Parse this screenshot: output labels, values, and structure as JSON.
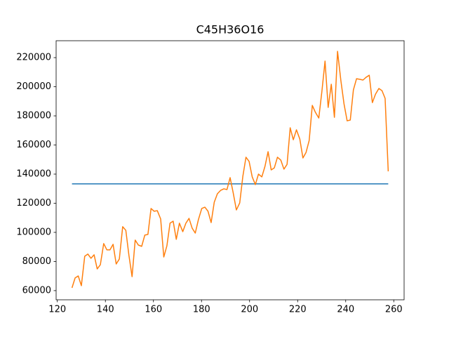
{
  "chart_data": {
    "type": "line",
    "title": "C45H36O16",
    "xlim": [
      119.5,
      264.3
    ],
    "xticks": [
      120,
      140,
      160,
      180,
      200,
      220,
      240,
      260
    ],
    "ylim": [
      53700,
      231600
    ],
    "yticks": [
      60000,
      80000,
      100000,
      120000,
      140000,
      160000,
      180000,
      200000,
      220000
    ],
    "grid": false,
    "series": [
      {
        "color": "#1f77b4",
        "x": [
          126.1,
          257.7
        ],
        "values": [
          133300,
          133300
        ]
      },
      {
        "color": "#ff7f0e",
        "x": [
          126.1,
          127.4,
          128.7,
          130.0,
          131.4,
          132.7,
          134.0,
          135.3,
          136.6,
          137.9,
          139.3,
          140.6,
          141.9,
          143.2,
          144.5,
          145.8,
          147.2,
          148.5,
          149.8,
          151.1,
          152.4,
          153.7,
          155.1,
          156.4,
          157.7,
          159.0,
          160.3,
          161.6,
          163.0,
          164.3,
          165.6,
          166.9,
          168.2,
          169.5,
          170.8,
          172.2,
          173.5,
          174.8,
          176.1,
          177.4,
          178.7,
          180.1,
          181.4,
          182.7,
          184.0,
          185.3,
          186.6,
          188.0,
          189.3,
          190.6,
          191.9,
          193.2,
          194.5,
          195.9,
          197.2,
          198.5,
          199.8,
          201.1,
          202.4,
          203.7,
          205.1,
          206.4,
          207.7,
          209.0,
          210.3,
          211.6,
          213.0,
          214.3,
          215.6,
          216.9,
          218.2,
          219.5,
          220.9,
          222.2,
          223.5,
          224.8,
          226.1,
          227.4,
          228.8,
          230.1,
          231.4,
          232.7,
          234.0,
          235.3,
          236.6,
          238.0,
          239.3,
          240.6,
          241.9,
          243.2,
          244.5,
          245.9,
          247.2,
          248.5,
          249.8,
          251.1,
          252.4,
          253.8,
          255.1,
          256.4,
          257.7
        ],
        "values": [
          61900,
          68700,
          70100,
          63400,
          83600,
          85100,
          82200,
          84600,
          74900,
          77800,
          92300,
          88000,
          88000,
          91800,
          78300,
          81700,
          103900,
          101400,
          84100,
          69600,
          94700,
          91300,
          90400,
          98100,
          98600,
          116400,
          114500,
          114900,
          109200,
          83100,
          90800,
          106300,
          107700,
          95200,
          106300,
          100500,
          106300,
          109600,
          102900,
          99500,
          108700,
          116400,
          117300,
          114500,
          106700,
          120700,
          126500,
          128900,
          129900,
          129400,
          137600,
          127000,
          115400,
          120200,
          138500,
          151600,
          148700,
          138100,
          132800,
          140000,
          138100,
          145300,
          155400,
          142900,
          144300,
          151600,
          149600,
          143400,
          146700,
          171800,
          163600,
          170400,
          164100,
          151100,
          154900,
          163100,
          187200,
          182400,
          178500,
          196900,
          217600,
          185800,
          201700,
          179000,
          224300,
          204100,
          188200,
          176600,
          177100,
          197800,
          205500,
          205100,
          204600,
          206500,
          207900,
          189100,
          194900,
          198800,
          197300,
          192000,
          141900
        ]
      }
    ]
  }
}
